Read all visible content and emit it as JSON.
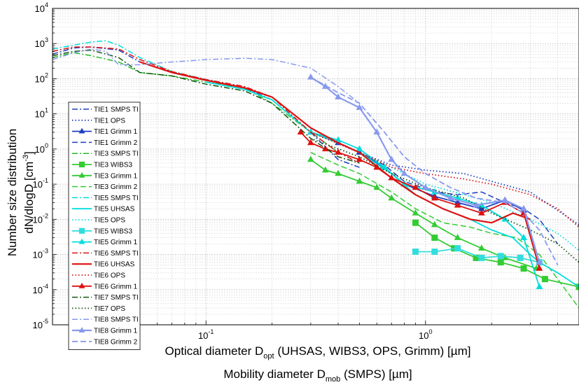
{
  "chart_data": {
    "type": "line",
    "xscale": "log",
    "yscale": "log",
    "xlim": [
      0.02,
      5
    ],
    "ylim": [
      1e-05,
      10000
    ],
    "grid": true,
    "legend_position": "left",
    "xlabel": {
      "line1_main": "Optical diameter D",
      "line1_sub": "opt",
      "line1_rest": " (UHSAS, WIBS3, OPS, Grimm) [µm]",
      "line2_main": "Mobility diameter D",
      "line2_sub": "mob",
      "line2_rest": " (SMPS) [µm]"
    },
    "ylabel": {
      "line1": "Number size distribution",
      "line2_main": "dN/dlogD [cm",
      "line2_sup": "-3",
      "line2_rest": "]"
    },
    "x_tick_labels": [
      {
        "value": 0.1,
        "base": "10",
        "exp": "-1"
      },
      {
        "value": 1,
        "base": "10",
        "exp": "0"
      }
    ],
    "y_tick_labels": [
      {
        "value": 1e-05,
        "base": "10",
        "exp": "-5"
      },
      {
        "value": 0.0001,
        "base": "10",
        "exp": "-4"
      },
      {
        "value": 0.001,
        "base": "10",
        "exp": "-3"
      },
      {
        "value": 0.01,
        "base": "10",
        "exp": "-2"
      },
      {
        "value": 0.1,
        "base": "10",
        "exp": "-1"
      },
      {
        "value": 1,
        "base": "10",
        "exp": "0"
      },
      {
        "value": 10,
        "base": "10",
        "exp": "1"
      },
      {
        "value": 100,
        "base": "10",
        "exp": "2"
      },
      {
        "value": 1000,
        "base": "10",
        "exp": "3"
      },
      {
        "value": 10000,
        "base": "10",
        "exp": "4"
      }
    ],
    "series": [
      {
        "name": "TIE1 SMPS TI",
        "color": "#1f3fbf",
        "dash": "dashdot",
        "width": 1.5,
        "marker": "none",
        "x": [
          0.02,
          0.025,
          0.03,
          0.04,
          0.05,
          0.07,
          0.1,
          0.15,
          0.2,
          0.3,
          0.4,
          0.5
        ],
        "y": [
          500,
          750,
          800,
          650,
          300,
          150,
          90,
          55,
          25,
          3,
          0.5,
          0.3
        ]
      },
      {
        "name": "TIE1 OPS",
        "color": "#1f3fbf",
        "dash": "dot",
        "width": 1.8,
        "marker": "none",
        "x": [
          0.3,
          0.5,
          0.7,
          1,
          1.5,
          2,
          3,
          5
        ],
        "y": [
          3,
          0.8,
          0.35,
          0.25,
          0.2,
          0.12,
          0.06,
          0.007
        ]
      },
      {
        "name": "TIE1 Grimm 1",
        "color": "#1f3fbf",
        "dash": "solid",
        "width": 1.8,
        "marker": "triangle",
        "x": [
          0.3,
          0.4,
          0.5,
          0.65,
          0.8,
          1.1,
          1.4,
          1.8,
          2.3,
          2.8,
          3.3
        ],
        "y": [
          3,
          1.5,
          0.8,
          0.3,
          0.1,
          0.045,
          0.03,
          0.02,
          0.035,
          0.018,
          0.0006
        ]
      },
      {
        "name": "TIE1 Grimm 2",
        "color": "#1f3fbf",
        "dash": "dash",
        "width": 1.5,
        "marker": "none",
        "x": [
          0.3,
          0.4,
          0.5,
          0.65,
          0.8,
          1.1,
          1.4,
          1.8,
          2.3,
          2.8,
          3.3,
          4
        ],
        "y": [
          3,
          1.5,
          0.8,
          0.35,
          0.12,
          0.06,
          0.05,
          0.06,
          0.03,
          0.02,
          0.01,
          0.002
        ]
      },
      {
        "name": "TIE3 SMPS TI",
        "color": "#22bb22",
        "dash": "dashdot",
        "width": 1.5,
        "marker": "none",
        "x": [
          0.02,
          0.025,
          0.03,
          0.04,
          0.05,
          0.07,
          0.1,
          0.15,
          0.2,
          0.3,
          0.4,
          0.5
        ],
        "y": [
          400,
          550,
          450,
          300,
          150,
          120,
          80,
          55,
          20,
          3,
          0.8,
          0.5
        ]
      },
      {
        "name": "TIE3 WIBS3",
        "color": "#33cc33",
        "dash": "solid",
        "width": 1.8,
        "marker": "square",
        "x": [
          0.9,
          1.1,
          1.35,
          1.7,
          2.2,
          2.8,
          3.5,
          5
        ],
        "y": [
          0.008,
          0.003,
          0.0015,
          0.0008,
          0.0006,
          0.0004,
          0.0002,
          0.00012
        ]
      },
      {
        "name": "TIE3 Grimm 1",
        "color": "#33cc33",
        "dash": "solid",
        "width": 1.8,
        "marker": "triangle",
        "x": [
          0.3,
          0.35,
          0.4,
          0.5,
          0.6,
          0.7,
          0.9,
          1.1,
          1.4,
          1.8,
          2.3,
          3.2
        ],
        "y": [
          0.5,
          0.25,
          0.2,
          0.12,
          0.08,
          0.04,
          0.015,
          0.007,
          0.003,
          0.0015,
          0.0008,
          0.0004
        ]
      },
      {
        "name": "TIE3 Grimm 2",
        "color": "#33cc33",
        "dash": "dash",
        "width": 1.5,
        "marker": "none",
        "x": [
          0.3,
          0.4,
          0.5,
          0.7,
          0.9,
          1.2,
          1.6,
          2,
          2.6,
          3.3,
          4,
          5
        ],
        "y": [
          0.8,
          0.35,
          0.2,
          0.06,
          0.02,
          0.008,
          0.006,
          0.004,
          0.003,
          0.001,
          0.0002,
          3e-05
        ]
      },
      {
        "name": "TIE5 SMPS TI",
        "color": "#00dddd",
        "dash": "dashdot",
        "width": 1.5,
        "marker": "none",
        "x": [
          0.02,
          0.025,
          0.03,
          0.035,
          0.04,
          0.05,
          0.07,
          0.1,
          0.15,
          0.2,
          0.3,
          0.4,
          0.5
        ],
        "y": [
          700,
          900,
          1100,
          1200,
          900,
          400,
          160,
          95,
          55,
          30,
          4,
          1.5,
          0.8
        ]
      },
      {
        "name": "TIE5 UHSAS",
        "color": "#00dddd",
        "dash": "solid",
        "width": 1.8,
        "marker": "none",
        "x": [
          0.1,
          0.15,
          0.2,
          0.3,
          0.4,
          0.5,
          0.7,
          0.9,
          1.2,
          1.6,
          2,
          2.5,
          3,
          3.3,
          4,
          5
        ],
        "y": [
          80,
          50,
          25,
          3,
          1.5,
          0.8,
          0.2,
          0.05,
          0.02,
          0.01,
          0.005,
          0.003,
          0.001,
          0.0006,
          0.0003,
          0.00012
        ]
      },
      {
        "name": "TIE5 OPS",
        "color": "#00dddd",
        "dash": "dot",
        "width": 1.8,
        "marker": "none",
        "x": [
          0.3,
          0.5,
          0.7,
          1,
          1.5,
          2,
          3,
          4,
          5
        ],
        "y": [
          3,
          0.8,
          0.3,
          0.1,
          0.05,
          0.03,
          0.01,
          0.004,
          0.0013
        ]
      },
      {
        "name": "TIE5 WIBS3",
        "color": "#33dddd",
        "dash": "solid",
        "width": 1.8,
        "marker": "square",
        "x": [
          0.9,
          1.1,
          1.4,
          1.8,
          2.2,
          2.7,
          3.3
        ],
        "y": [
          0.0012,
          0.0012,
          0.0015,
          0.0008,
          0.0009,
          0.0008,
          0.0006
        ]
      },
      {
        "name": "TIE5 Grimm 1",
        "color": "#00dddd",
        "dash": "solid",
        "width": 1.8,
        "marker": "triangle",
        "x": [
          0.3,
          0.4,
          0.5,
          0.65,
          0.8,
          1.1,
          1.4,
          1.8,
          2.3,
          2.8,
          3.3
        ],
        "y": [
          3,
          1.8,
          1,
          0.3,
          0.1,
          0.06,
          0.04,
          0.025,
          0.01,
          0.003,
          0.00012
        ]
      },
      {
        "name": "TIE6 SMPS TI",
        "color": "#dd1111",
        "dash": "dashdot",
        "width": 1.5,
        "marker": "none",
        "x": [
          0.02,
          0.025,
          0.03,
          0.04,
          0.05,
          0.07,
          0.1,
          0.15,
          0.2,
          0.3,
          0.4,
          0.5
        ],
        "y": [
          600,
          800,
          800,
          700,
          350,
          160,
          95,
          60,
          30,
          3,
          0.8,
          0.4
        ]
      },
      {
        "name": "TIE6 UHSAS",
        "color": "#dd1111",
        "dash": "solid",
        "width": 2.2,
        "marker": "none",
        "x": [
          0.05,
          0.07,
          0.1,
          0.15,
          0.2,
          0.3,
          0.4,
          0.5,
          0.7,
          0.9,
          1.2,
          1.6,
          2,
          2.5,
          3
        ],
        "y": [
          300,
          150,
          90,
          55,
          30,
          4,
          1.5,
          0.8,
          0.15,
          0.05,
          0.02,
          0.01,
          0.008,
          0.015,
          0.01
        ]
      },
      {
        "name": "TIE6 OPS",
        "color": "#dd1111",
        "dash": "dot",
        "width": 1.8,
        "marker": "none",
        "x": [
          0.3,
          0.5,
          0.7,
          1,
          1.5,
          2,
          3,
          4,
          5
        ],
        "y": [
          3,
          0.8,
          0.3,
          0.2,
          0.14,
          0.1,
          0.05,
          0.02,
          0.006
        ]
      },
      {
        "name": "TIE6 Grimm 1",
        "color": "#dd1111",
        "dash": "solid",
        "width": 1.8,
        "marker": "triangle",
        "x": [
          0.27,
          0.3,
          0.35,
          0.4,
          0.5,
          0.6,
          0.7,
          0.9,
          1.1,
          1.4,
          1.8,
          2.3,
          2.8,
          3.3
        ],
        "y": [
          3,
          1.5,
          1,
          0.8,
          0.5,
          0.3,
          0.15,
          0.08,
          0.04,
          0.025,
          0.015,
          0.03,
          0.015,
          0.0004
        ]
      },
      {
        "name": "TIE7 SMPS TI",
        "color": "#115511",
        "dash": "dashdot",
        "width": 1.5,
        "marker": "none",
        "x": [
          0.02,
          0.025,
          0.03,
          0.04,
          0.05,
          0.07,
          0.1,
          0.15,
          0.2,
          0.3,
          0.4,
          0.5
        ],
        "y": [
          450,
          600,
          650,
          400,
          150,
          120,
          70,
          45,
          20,
          2,
          0.6,
          0.4
        ]
      },
      {
        "name": "TIE7 OPS",
        "color": "#115511",
        "dash": "dot",
        "width": 1.8,
        "marker": "none",
        "x": [
          0.3,
          0.5,
          0.7,
          1,
          1.5,
          2,
          3,
          4,
          5
        ],
        "y": [
          2,
          0.6,
          0.2,
          0.08,
          0.04,
          0.015,
          0.005,
          0.002,
          0.0006
        ]
      },
      {
        "name": "TIE8 SMPS TI",
        "color": "#8899ee",
        "dash": "dashdot",
        "width": 1.5,
        "marker": "none",
        "x": [
          0.02,
          0.025,
          0.03,
          0.035,
          0.04,
          0.05,
          0.07,
          0.1,
          0.15,
          0.2,
          0.3,
          0.4,
          0.5
        ],
        "y": [
          350,
          550,
          700,
          600,
          250,
          250,
          300,
          350,
          380,
          350,
          200,
          60,
          20
        ]
      },
      {
        "name": "TIE8 Grimm 1",
        "color": "#8899ee",
        "dash": "solid",
        "width": 2.2,
        "marker": "triangle",
        "x": [
          0.3,
          0.35,
          0.4,
          0.5,
          0.6,
          0.7,
          0.8,
          1,
          1.3,
          1.7,
          2.3,
          2.8,
          3.3
        ],
        "y": [
          110,
          60,
          30,
          15,
          3,
          0.5,
          0.2,
          0.08,
          0.04,
          0.025,
          0.035,
          0.02,
          0.0006
        ]
      },
      {
        "name": "TIE8 Grimm 2",
        "color": "#8899ee",
        "dash": "dash",
        "width": 1.8,
        "marker": "none",
        "x": [
          0.3,
          0.4,
          0.5,
          0.65,
          0.8,
          1,
          1.3,
          1.7,
          2.3,
          2.8,
          3.3,
          4
        ],
        "y": [
          110,
          40,
          20,
          3,
          0.6,
          0.2,
          0.08,
          0.04,
          0.03,
          0.015,
          0.005,
          0.0005
        ]
      }
    ]
  }
}
